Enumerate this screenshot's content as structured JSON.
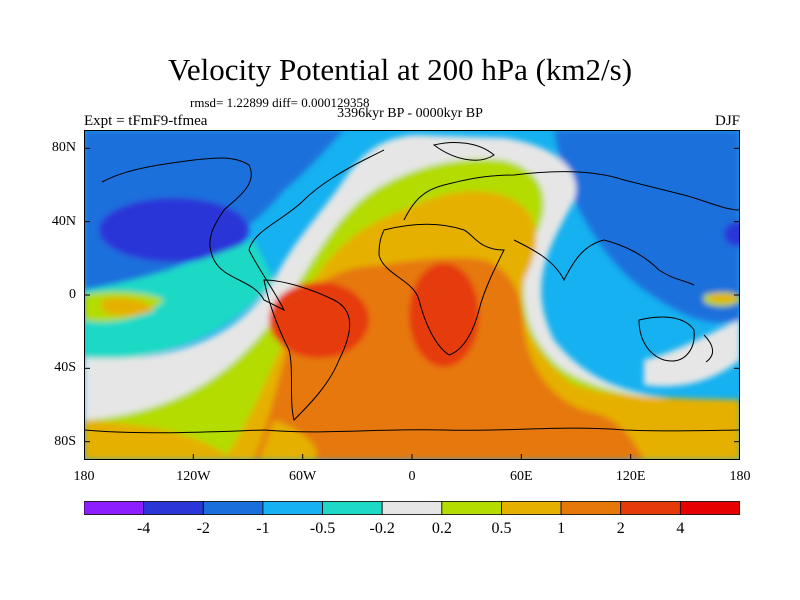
{
  "title": "Velocity Potential at 200 hPa (km2/s)",
  "subtitle_stats": "rmsd= 1.22899 diff= 0.000129358",
  "period": "3396kyr BP - 0000kyr BP",
  "left_label": "Expt = tFmF9-tfmea",
  "right_label": "DJF",
  "map": {
    "projection": "cylindrical-equidistant",
    "lon_ticks": [
      {
        "value": -180,
        "label": "180"
      },
      {
        "value": -120,
        "label": "120W"
      },
      {
        "value": -60,
        "label": "60W"
      },
      {
        "value": 0,
        "label": "0"
      },
      {
        "value": 60,
        "label": "60E"
      },
      {
        "value": 120,
        "label": "120E"
      },
      {
        "value": 180,
        "label": "180"
      }
    ],
    "lat_ticks": [
      {
        "value": 80,
        "label": "80N"
      },
      {
        "value": 40,
        "label": "40N"
      },
      {
        "value": 0,
        "label": "0"
      },
      {
        "value": -40,
        "label": "40S"
      },
      {
        "value": -80,
        "label": "80S"
      }
    ],
    "lat_range": [
      -90,
      90
    ],
    "lon_range": [
      -180,
      180
    ]
  },
  "colorbar": {
    "labels": [
      "-4",
      "-2",
      "-1",
      "-0.5",
      "-0.2",
      "0.2",
      "0.5",
      "1",
      "2",
      "4"
    ],
    "colors": [
      "#8c1eff",
      "#2b35d8",
      "#1a6fdc",
      "#16b1f0",
      "#1ed9c6",
      "#e6e6e6",
      "#b4dc00",
      "#e6b000",
      "#e6780a",
      "#e63a0a",
      "#e60000"
    ]
  }
}
